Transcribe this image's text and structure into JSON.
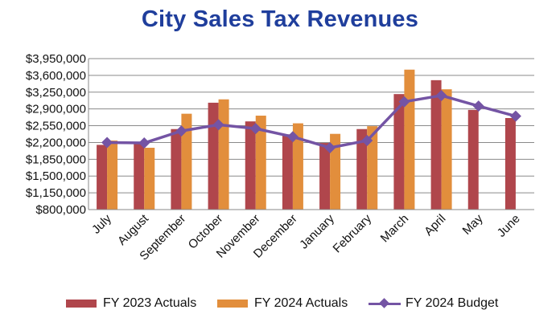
{
  "chart_data": {
    "type": "bar",
    "title": "City Sales Tax Revenues",
    "categories": [
      "July",
      "August",
      "September",
      "October",
      "November",
      "December",
      "January",
      "February",
      "March",
      "April",
      "May",
      "June"
    ],
    "series": [
      {
        "name": "FY 2023 Actuals",
        "type": "bar",
        "color": "#b0464c",
        "values": [
          2150000,
          2170000,
          2480000,
          3030000,
          2640000,
          2370000,
          2190000,
          2480000,
          3210000,
          3500000,
          2880000,
          2710000
        ]
      },
      {
        "name": "FY 2024 Actuals",
        "type": "bar",
        "color": "#e28e3c",
        "values": [
          2240000,
          2090000,
          2800000,
          3100000,
          2760000,
          2600000,
          2380000,
          2540000,
          3720000,
          3310000,
          null,
          null
        ]
      },
      {
        "name": "FY 2024 Budget",
        "type": "line",
        "marker": "diamond",
        "color": "#7454a4",
        "values": [
          2200000,
          2190000,
          2440000,
          2570000,
          2490000,
          2320000,
          2090000,
          2240000,
          3050000,
          3180000,
          2960000,
          2750000
        ]
      }
    ],
    "ylim": [
      800000,
      3950000
    ],
    "yticks": [
      "$800,000",
      "$1,150,000",
      "$1,500,000",
      "$1,850,000",
      "$2,200,000",
      "$2,550,000",
      "$2,900,000",
      "$3,250,000",
      "$3,600,000",
      "$3,950,000"
    ],
    "ytick_values": [
      800000,
      1150000,
      1500000,
      1850000,
      2200000,
      2550000,
      2900000,
      3250000,
      3600000,
      3950000
    ],
    "grid": true,
    "legend_position": "bottom"
  }
}
